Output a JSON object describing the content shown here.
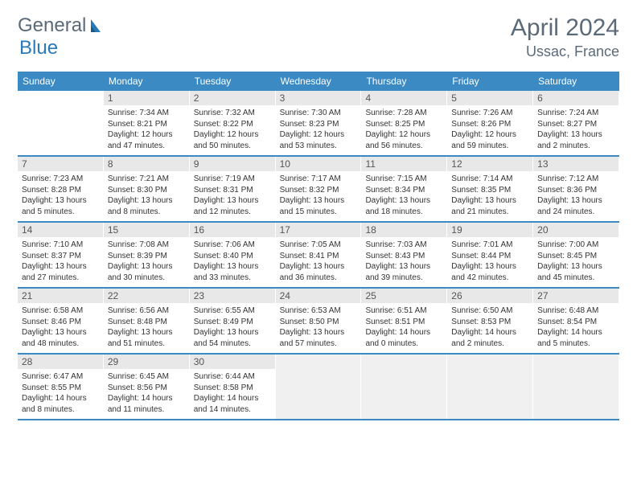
{
  "logo": {
    "text1": "General",
    "text2": "Blue"
  },
  "title": "April 2024",
  "location": "Ussac, France",
  "colors": {
    "header_bg": "#3b8ac4",
    "header_text": "#ffffff",
    "daynum_bg": "#e8e8e8",
    "text": "#333333",
    "title_color": "#5a6a78",
    "row_divider": "#3b8ac4"
  },
  "days_of_week": [
    "Sunday",
    "Monday",
    "Tuesday",
    "Wednesday",
    "Thursday",
    "Friday",
    "Saturday"
  ],
  "weeks": [
    [
      {
        "n": "",
        "empty": true
      },
      {
        "n": "1",
        "sr": "Sunrise: 7:34 AM",
        "ss": "Sunset: 8:21 PM",
        "dl": "Daylight: 12 hours and 47 minutes."
      },
      {
        "n": "2",
        "sr": "Sunrise: 7:32 AM",
        "ss": "Sunset: 8:22 PM",
        "dl": "Daylight: 12 hours and 50 minutes."
      },
      {
        "n": "3",
        "sr": "Sunrise: 7:30 AM",
        "ss": "Sunset: 8:23 PM",
        "dl": "Daylight: 12 hours and 53 minutes."
      },
      {
        "n": "4",
        "sr": "Sunrise: 7:28 AM",
        "ss": "Sunset: 8:25 PM",
        "dl": "Daylight: 12 hours and 56 minutes."
      },
      {
        "n": "5",
        "sr": "Sunrise: 7:26 AM",
        "ss": "Sunset: 8:26 PM",
        "dl": "Daylight: 12 hours and 59 minutes."
      },
      {
        "n": "6",
        "sr": "Sunrise: 7:24 AM",
        "ss": "Sunset: 8:27 PM",
        "dl": "Daylight: 13 hours and 2 minutes."
      }
    ],
    [
      {
        "n": "7",
        "sr": "Sunrise: 7:23 AM",
        "ss": "Sunset: 8:28 PM",
        "dl": "Daylight: 13 hours and 5 minutes."
      },
      {
        "n": "8",
        "sr": "Sunrise: 7:21 AM",
        "ss": "Sunset: 8:30 PM",
        "dl": "Daylight: 13 hours and 8 minutes."
      },
      {
        "n": "9",
        "sr": "Sunrise: 7:19 AM",
        "ss": "Sunset: 8:31 PM",
        "dl": "Daylight: 13 hours and 12 minutes."
      },
      {
        "n": "10",
        "sr": "Sunrise: 7:17 AM",
        "ss": "Sunset: 8:32 PM",
        "dl": "Daylight: 13 hours and 15 minutes."
      },
      {
        "n": "11",
        "sr": "Sunrise: 7:15 AM",
        "ss": "Sunset: 8:34 PM",
        "dl": "Daylight: 13 hours and 18 minutes."
      },
      {
        "n": "12",
        "sr": "Sunrise: 7:14 AM",
        "ss": "Sunset: 8:35 PM",
        "dl": "Daylight: 13 hours and 21 minutes."
      },
      {
        "n": "13",
        "sr": "Sunrise: 7:12 AM",
        "ss": "Sunset: 8:36 PM",
        "dl": "Daylight: 13 hours and 24 minutes."
      }
    ],
    [
      {
        "n": "14",
        "sr": "Sunrise: 7:10 AM",
        "ss": "Sunset: 8:37 PM",
        "dl": "Daylight: 13 hours and 27 minutes."
      },
      {
        "n": "15",
        "sr": "Sunrise: 7:08 AM",
        "ss": "Sunset: 8:39 PM",
        "dl": "Daylight: 13 hours and 30 minutes."
      },
      {
        "n": "16",
        "sr": "Sunrise: 7:06 AM",
        "ss": "Sunset: 8:40 PM",
        "dl": "Daylight: 13 hours and 33 minutes."
      },
      {
        "n": "17",
        "sr": "Sunrise: 7:05 AM",
        "ss": "Sunset: 8:41 PM",
        "dl": "Daylight: 13 hours and 36 minutes."
      },
      {
        "n": "18",
        "sr": "Sunrise: 7:03 AM",
        "ss": "Sunset: 8:43 PM",
        "dl": "Daylight: 13 hours and 39 minutes."
      },
      {
        "n": "19",
        "sr": "Sunrise: 7:01 AM",
        "ss": "Sunset: 8:44 PM",
        "dl": "Daylight: 13 hours and 42 minutes."
      },
      {
        "n": "20",
        "sr": "Sunrise: 7:00 AM",
        "ss": "Sunset: 8:45 PM",
        "dl": "Daylight: 13 hours and 45 minutes."
      }
    ],
    [
      {
        "n": "21",
        "sr": "Sunrise: 6:58 AM",
        "ss": "Sunset: 8:46 PM",
        "dl": "Daylight: 13 hours and 48 minutes."
      },
      {
        "n": "22",
        "sr": "Sunrise: 6:56 AM",
        "ss": "Sunset: 8:48 PM",
        "dl": "Daylight: 13 hours and 51 minutes."
      },
      {
        "n": "23",
        "sr": "Sunrise: 6:55 AM",
        "ss": "Sunset: 8:49 PM",
        "dl": "Daylight: 13 hours and 54 minutes."
      },
      {
        "n": "24",
        "sr": "Sunrise: 6:53 AM",
        "ss": "Sunset: 8:50 PM",
        "dl": "Daylight: 13 hours and 57 minutes."
      },
      {
        "n": "25",
        "sr": "Sunrise: 6:51 AM",
        "ss": "Sunset: 8:51 PM",
        "dl": "Daylight: 14 hours and 0 minutes."
      },
      {
        "n": "26",
        "sr": "Sunrise: 6:50 AM",
        "ss": "Sunset: 8:53 PM",
        "dl": "Daylight: 14 hours and 2 minutes."
      },
      {
        "n": "27",
        "sr": "Sunrise: 6:48 AM",
        "ss": "Sunset: 8:54 PM",
        "dl": "Daylight: 14 hours and 5 minutes."
      }
    ],
    [
      {
        "n": "28",
        "sr": "Sunrise: 6:47 AM",
        "ss": "Sunset: 8:55 PM",
        "dl": "Daylight: 14 hours and 8 minutes."
      },
      {
        "n": "29",
        "sr": "Sunrise: 6:45 AM",
        "ss": "Sunset: 8:56 PM",
        "dl": "Daylight: 14 hours and 11 minutes."
      },
      {
        "n": "30",
        "sr": "Sunrise: 6:44 AM",
        "ss": "Sunset: 8:58 PM",
        "dl": "Daylight: 14 hours and 14 minutes."
      },
      {
        "n": "",
        "tail": true
      },
      {
        "n": "",
        "tail": true
      },
      {
        "n": "",
        "tail": true
      },
      {
        "n": "",
        "tail": true
      }
    ]
  ]
}
